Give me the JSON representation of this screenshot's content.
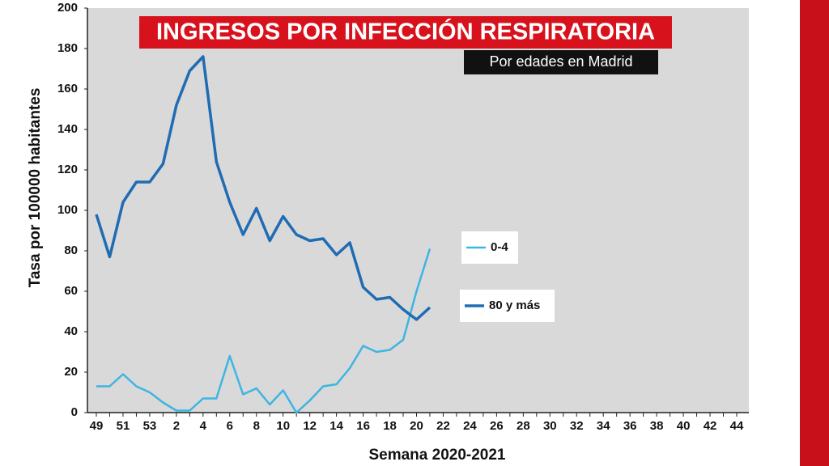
{
  "chart_data": {
    "type": "line",
    "title": "INGRESOS POR INFECCIÓN RESPIRATORIA",
    "subtitle": "Por edades en Madrid",
    "x_label": "Semana 2020-2021",
    "y_label": "Tasa por 100000 habitantes",
    "categories": [
      "49",
      null,
      "51",
      null,
      "53",
      null,
      "2",
      null,
      "4",
      null,
      "6",
      null,
      "8",
      null,
      "10",
      null,
      "12",
      null,
      "14",
      null,
      "16",
      null,
      "18",
      null,
      "20",
      null,
      "22",
      null,
      "24",
      null,
      "26",
      null,
      "28",
      null,
      "30",
      null,
      "32",
      null,
      "34",
      null,
      "36",
      null,
      "38",
      null,
      "40",
      null,
      "42",
      null,
      "44"
    ],
    "series": [
      {
        "name": "0-4",
        "color": "#3db5e2",
        "values": [
          13,
          13,
          19,
          13,
          10,
          5,
          1,
          1,
          7,
          7,
          28,
          9,
          12,
          4,
          11,
          0,
          6,
          13,
          14,
          22,
          33,
          30,
          31,
          36,
          60,
          81,
          null,
          null,
          null,
          null,
          null,
          null,
          null,
          null,
          null,
          null,
          null,
          null,
          null,
          null,
          null,
          null,
          null,
          null,
          null,
          null,
          null,
          null,
          null
        ]
      },
      {
        "name": "80 y más",
        "color": "#1f6cb3",
        "values": [
          98,
          77,
          104,
          114,
          114,
          123,
          152,
          169,
          176,
          124,
          104,
          88,
          101,
          85,
          97,
          88,
          85,
          86,
          78,
          84,
          62,
          56,
          57,
          51,
          46,
          52,
          null,
          null,
          null,
          null,
          null,
          null,
          null,
          null,
          null,
          null,
          null,
          null,
          null,
          null,
          null,
          null,
          null,
          null,
          null,
          null,
          null,
          null,
          null
        ]
      }
    ],
    "ylim": [
      0,
      200
    ],
    "yticks": [
      0,
      20,
      40,
      60,
      80,
      100,
      120,
      140,
      160,
      180,
      200
    ]
  }
}
